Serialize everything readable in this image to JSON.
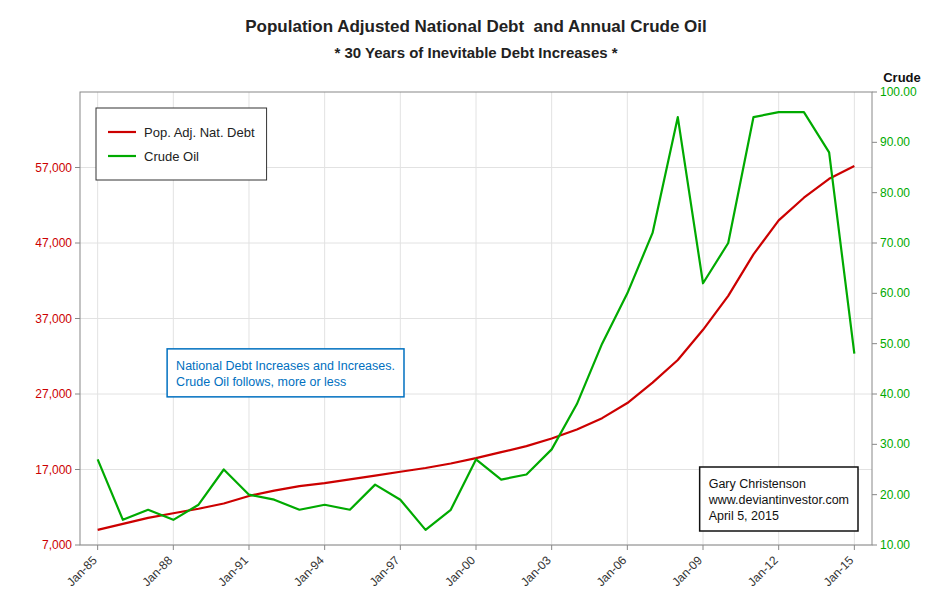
{
  "chart_data": {
    "type": "line",
    "title": "Population Adjusted National Debt  and Annual Crude Oil",
    "subtitle": "* 30 Years of Inevitable Debt Increases *",
    "y2label": "Crude",
    "x": [
      1985,
      1986,
      1987,
      1988,
      1989,
      1990,
      1991,
      1992,
      1993,
      1994,
      1995,
      1996,
      1997,
      1998,
      1999,
      2000,
      2001,
      2002,
      2003,
      2004,
      2005,
      2006,
      2007,
      2008,
      2009,
      2010,
      2011,
      2012,
      2013,
      2014,
      2015
    ],
    "xlim": [
      1984.3,
      2015.7
    ],
    "xticks": [
      {
        "value": 1985,
        "label": "Jan-85"
      },
      {
        "value": 1988,
        "label": "Jan-88"
      },
      {
        "value": 1991,
        "label": "Jan-91"
      },
      {
        "value": 1994,
        "label": "Jan-94"
      },
      {
        "value": 1997,
        "label": "Jan-97"
      },
      {
        "value": 2000,
        "label": "Jan-00"
      },
      {
        "value": 2003,
        "label": "Jan-03"
      },
      {
        "value": 2006,
        "label": "Jan-06"
      },
      {
        "value": 2009,
        "label": "Jan-09"
      },
      {
        "value": 2012,
        "label": "Jan-12"
      },
      {
        "value": 2015,
        "label": "Jan-15"
      }
    ],
    "ylim": [
      7000,
      67000
    ],
    "yticks": [
      {
        "value": 7000,
        "label": "7,000"
      },
      {
        "value": 17000,
        "label": "17,000"
      },
      {
        "value": 27000,
        "label": "27,000"
      },
      {
        "value": 37000,
        "label": "37,000"
      },
      {
        "value": 47000,
        "label": "47,000"
      },
      {
        "value": 57000,
        "label": "57,000"
      }
    ],
    "y2lim": [
      10,
      100
    ],
    "y2ticks": [
      {
        "value": 10,
        "label": "10.00"
      },
      {
        "value": 20,
        "label": "20.00"
      },
      {
        "value": 30,
        "label": "30.00"
      },
      {
        "value": 40,
        "label": "40.00"
      },
      {
        "value": 50,
        "label": "50.00"
      },
      {
        "value": 60,
        "label": "60.00"
      },
      {
        "value": 70,
        "label": "70.00"
      },
      {
        "value": 80,
        "label": "80.00"
      },
      {
        "value": 90,
        "label": "90.00"
      },
      {
        "value": 100,
        "label": "100.00"
      }
    ],
    "grid": true,
    "legend": "upper left",
    "series": [
      {
        "name": "Pop. Adj. Nat. Debt",
        "color": "#cc0000",
        "values": [
          9000,
          9800,
          10600,
          11200,
          11800,
          12500,
          13500,
          14200,
          14800,
          15200,
          15700,
          16200,
          16700,
          17200,
          17800,
          18500,
          19300,
          20100,
          21100,
          22300,
          23800,
          25800,
          28500,
          31500,
          35500,
          40000,
          45500,
          50000,
          53000,
          55500,
          57200
        ]
      },
      {
        "name": "Crude Oil",
        "color": "#00aa00",
        "axis": "y2",
        "values": [
          27,
          15,
          17,
          15,
          18,
          25,
          20,
          19,
          17,
          18,
          17,
          22,
          19,
          13,
          17,
          27,
          23,
          24,
          29,
          38,
          50,
          60,
          72,
          95,
          62,
          70,
          95,
          96,
          96,
          88,
          48
        ]
      }
    ],
    "annotations": [
      "National Debt Increases and Increases.\nCrude Oil follows, more or less",
      "Gary Christenson\nwww.deviantinvestor.com\nApril 5, 2015"
    ]
  }
}
